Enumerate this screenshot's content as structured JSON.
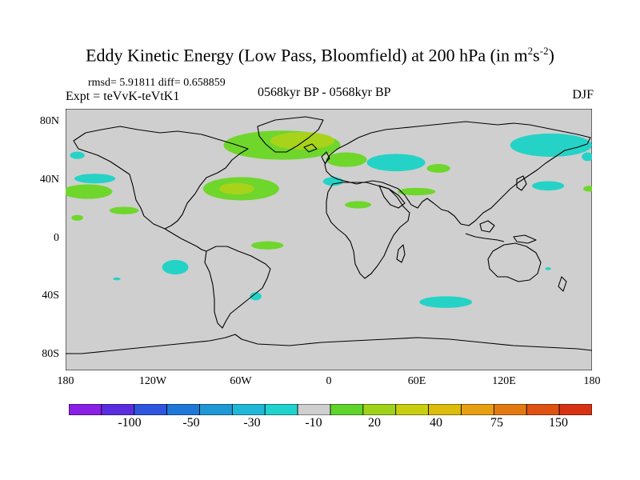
{
  "title": {
    "prefix": "Eddy Kinetic Energy (Low Pass, Bloomfield) at 200 hPa (in m",
    "sup1": "2",
    "mid": "s",
    "sup2": "-2",
    "suffix": ")"
  },
  "stats": {
    "rmsd": "rmsd= 5.91811 diff= 0.658859"
  },
  "expt": "Expt = teVvK-teVtK1",
  "period": "0568kyr BP - 0568kyr BP",
  "season": "DJF",
  "map": {
    "projection": "cylindrical-equidistant",
    "lon_range": [
      -180,
      180
    ],
    "lat_range": [
      -90,
      90
    ],
    "background_color": "#cfcfcf",
    "coastline_color": "#000000",
    "y_ticks": [
      "80N",
      "40N",
      "0",
      "40S",
      "80S"
    ],
    "x_ticks": [
      "180",
      "120W",
      "60W",
      "0",
      "60E",
      "120E",
      "180"
    ]
  },
  "colorbar": {
    "colors": [
      "#8a1fe6",
      "#5a2ee0",
      "#2f55de",
      "#1f78d8",
      "#1f98d6",
      "#20b8d8",
      "#20d3cc",
      "#cfcfcf",
      "#5fd42a",
      "#9ed31a",
      "#c8cf10",
      "#dcbc0c",
      "#e6a012",
      "#e27a12",
      "#de5212",
      "#d83214"
    ],
    "labels": [
      "-100",
      "-50",
      "-30",
      "-10",
      "20",
      "40",
      "75",
      "150"
    ]
  },
  "anomalies": [
    {
      "type": "positive",
      "color": "#6fd62c",
      "lon": -32,
      "lat": 65,
      "rx": 40,
      "ry": 10
    },
    {
      "type": "positive",
      "color": "#a8d31a",
      "lon": -18,
      "lat": 68,
      "rx": 22,
      "ry": 6
    },
    {
      "type": "positive",
      "color": "#6fd62c",
      "lon": 12,
      "lat": 55,
      "rx": 14,
      "ry": 5
    },
    {
      "type": "positive",
      "color": "#6fd62c",
      "lon": -60,
      "lat": 35,
      "rx": 26,
      "ry": 8
    },
    {
      "type": "positive",
      "color": "#a8d31a",
      "lon": -63,
      "lat": 35,
      "rx": 12,
      "ry": 4
    },
    {
      "type": "positive",
      "color": "#6fd62c",
      "lon": -165,
      "lat": 33,
      "rx": 17,
      "ry": 5
    },
    {
      "type": "positive",
      "color": "#6fd62c",
      "lon": -140,
      "lat": 20,
      "rx": 10,
      "ry": 2.6
    },
    {
      "type": "positive",
      "color": "#6fd62c",
      "lon": -172,
      "lat": 15,
      "rx": 4,
      "ry": 2
    },
    {
      "type": "positive",
      "color": "#6fd62c",
      "lon": 20,
      "lat": 24,
      "rx": 9,
      "ry": 2.5
    },
    {
      "type": "positive",
      "color": "#6fd62c",
      "lon": 60,
      "lat": 33,
      "rx": 13,
      "ry": 2.6
    },
    {
      "type": "positive",
      "color": "#6fd62c",
      "lon": 75,
      "lat": 49,
      "rx": 8,
      "ry": 3
    },
    {
      "type": "positive",
      "color": "#6fd62c",
      "lon": -42,
      "lat": -4,
      "rx": 11,
      "ry": 2.8
    },
    {
      "type": "positive",
      "color": "#6fd62c",
      "lon": 178,
      "lat": 35,
      "rx": 4,
      "ry": 2
    },
    {
      "type": "negative",
      "color": "#24d3c6",
      "lon": 152,
      "lat": 65,
      "rx": 28,
      "ry": 8
    },
    {
      "type": "negative",
      "color": "#24d3c6",
      "lon": 46,
      "lat": 53,
      "rx": 20,
      "ry": 6
    },
    {
      "type": "negative",
      "color": "#24d3c6",
      "lon": -172,
      "lat": 58,
      "rx": 5,
      "ry": 2.5
    },
    {
      "type": "negative",
      "color": "#24d3c6",
      "lon": 177,
      "lat": 57,
      "rx": 4,
      "ry": 3
    },
    {
      "type": "negative",
      "color": "#24d3c6",
      "lon": -160,
      "lat": 42,
      "rx": 14,
      "ry": 3.3
    },
    {
      "type": "negative",
      "color": "#24d3c6",
      "lon": 3,
      "lat": 40,
      "rx": 7,
      "ry": 3
    },
    {
      "type": "negative",
      "color": "#24d3c6",
      "lon": 150,
      "lat": 37,
      "rx": 11,
      "ry": 3.2
    },
    {
      "type": "negative",
      "color": "#24d3c6",
      "lon": -105,
      "lat": -19,
      "rx": 9,
      "ry": 5
    },
    {
      "type": "negative",
      "color": "#24d3c6",
      "lon": -50,
      "lat": -39,
      "rx": 4,
      "ry": 2.8
    },
    {
      "type": "negative",
      "color": "#24d3c6",
      "lon": 80,
      "lat": -43,
      "rx": 18,
      "ry": 4
    },
    {
      "type": "negative",
      "color": "#24d3c6",
      "lon": -145,
      "lat": -27,
      "rx": 2.5,
      "ry": 1
    },
    {
      "type": "negative",
      "color": "#24d3c6",
      "lon": 150,
      "lat": -20,
      "rx": 2,
      "ry": 1
    }
  ]
}
